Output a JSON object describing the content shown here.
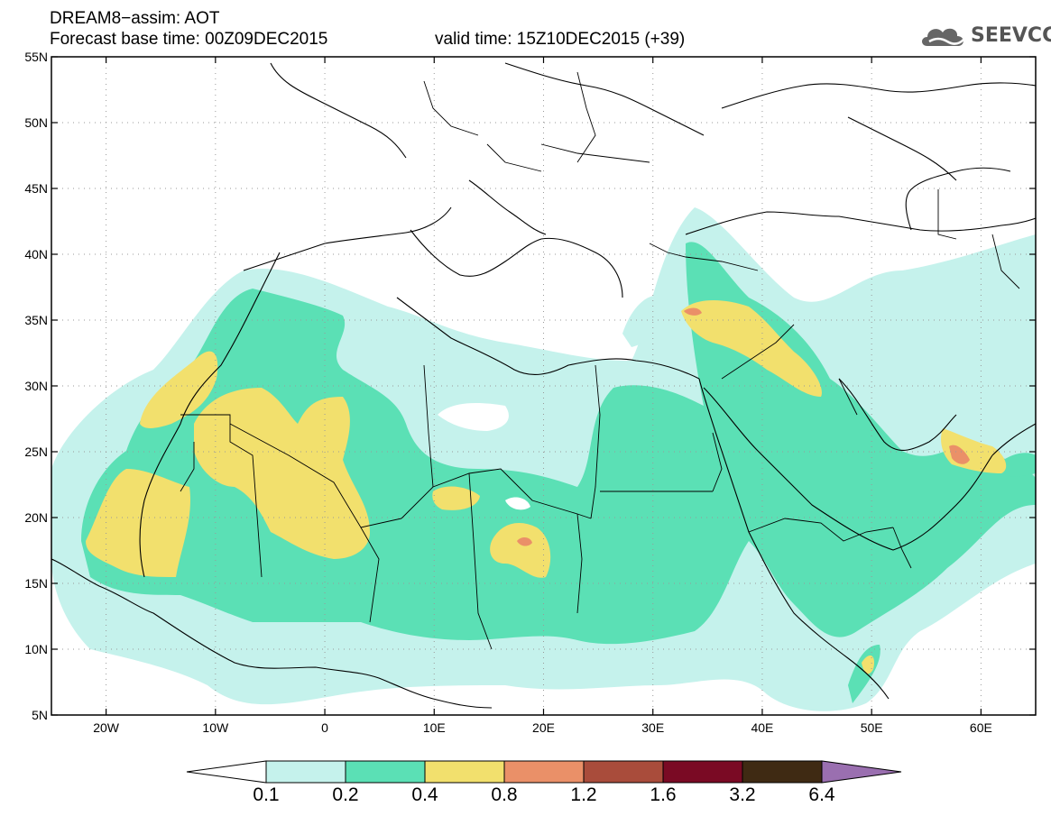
{
  "title": {
    "line1": "DREAM8−assim: AOT",
    "base_time": "Forecast base time: 00Z09DEC2015",
    "valid_time": "valid time: 15Z10DEC2015 (+39)"
  },
  "logo": {
    "text": "SEEVCCC",
    "icon": "cloud-logo-icon"
  },
  "axes": {
    "lon_labels": [
      "20W",
      "10W",
      "0",
      "10E",
      "20E",
      "30E",
      "40E",
      "50E",
      "60E"
    ],
    "lat_labels": [
      "55N",
      "50N",
      "45N",
      "40N",
      "35N",
      "30N",
      "25N",
      "20N",
      "15N",
      "10N",
      "5N"
    ],
    "lon_range": [
      -25,
      65
    ],
    "lat_range": [
      5,
      55
    ]
  },
  "colorbar": {
    "ticks": [
      "0.1",
      "0.2",
      "0.4",
      "0.8",
      "1.2",
      "1.6",
      "3.2",
      "6.4"
    ],
    "colors": [
      "#ffffff",
      "#c5f2ec",
      "#5be0b5",
      "#f2e06d",
      "#ea9068",
      "#a94c3b",
      "#7a0a24",
      "#3f2a13",
      "#9a6fb0"
    ]
  },
  "field": {
    "variable": "AOT",
    "levels": [
      0.1,
      0.2,
      0.4,
      0.8,
      1.2,
      1.6,
      3.2,
      6.4
    ]
  }
}
